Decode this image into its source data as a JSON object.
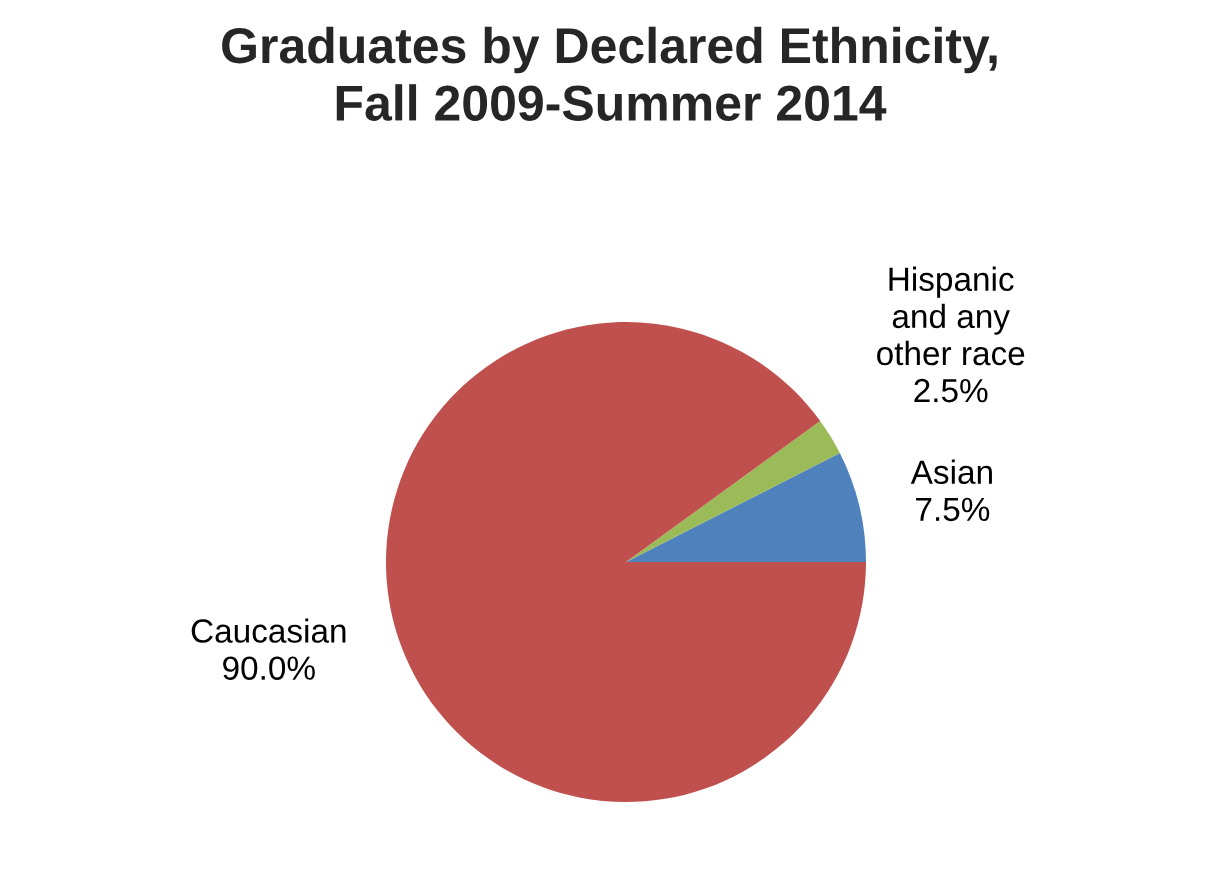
{
  "chart_data": {
    "type": "pie",
    "title": "Graduates by Declared Ethnicity,\nFall 2009-Summer 2014",
    "categories": [
      "Asian",
      "Hispanic\nand any\nother race",
      "Caucasian"
    ],
    "values": [
      7.5,
      2.5,
      90.0
    ],
    "colors": [
      "#4f81bd",
      "#9bbb59",
      "#c0504d"
    ],
    "value_labels": [
      "7.5%",
      "2.5%",
      "90.0%"
    ],
    "legend": false
  }
}
